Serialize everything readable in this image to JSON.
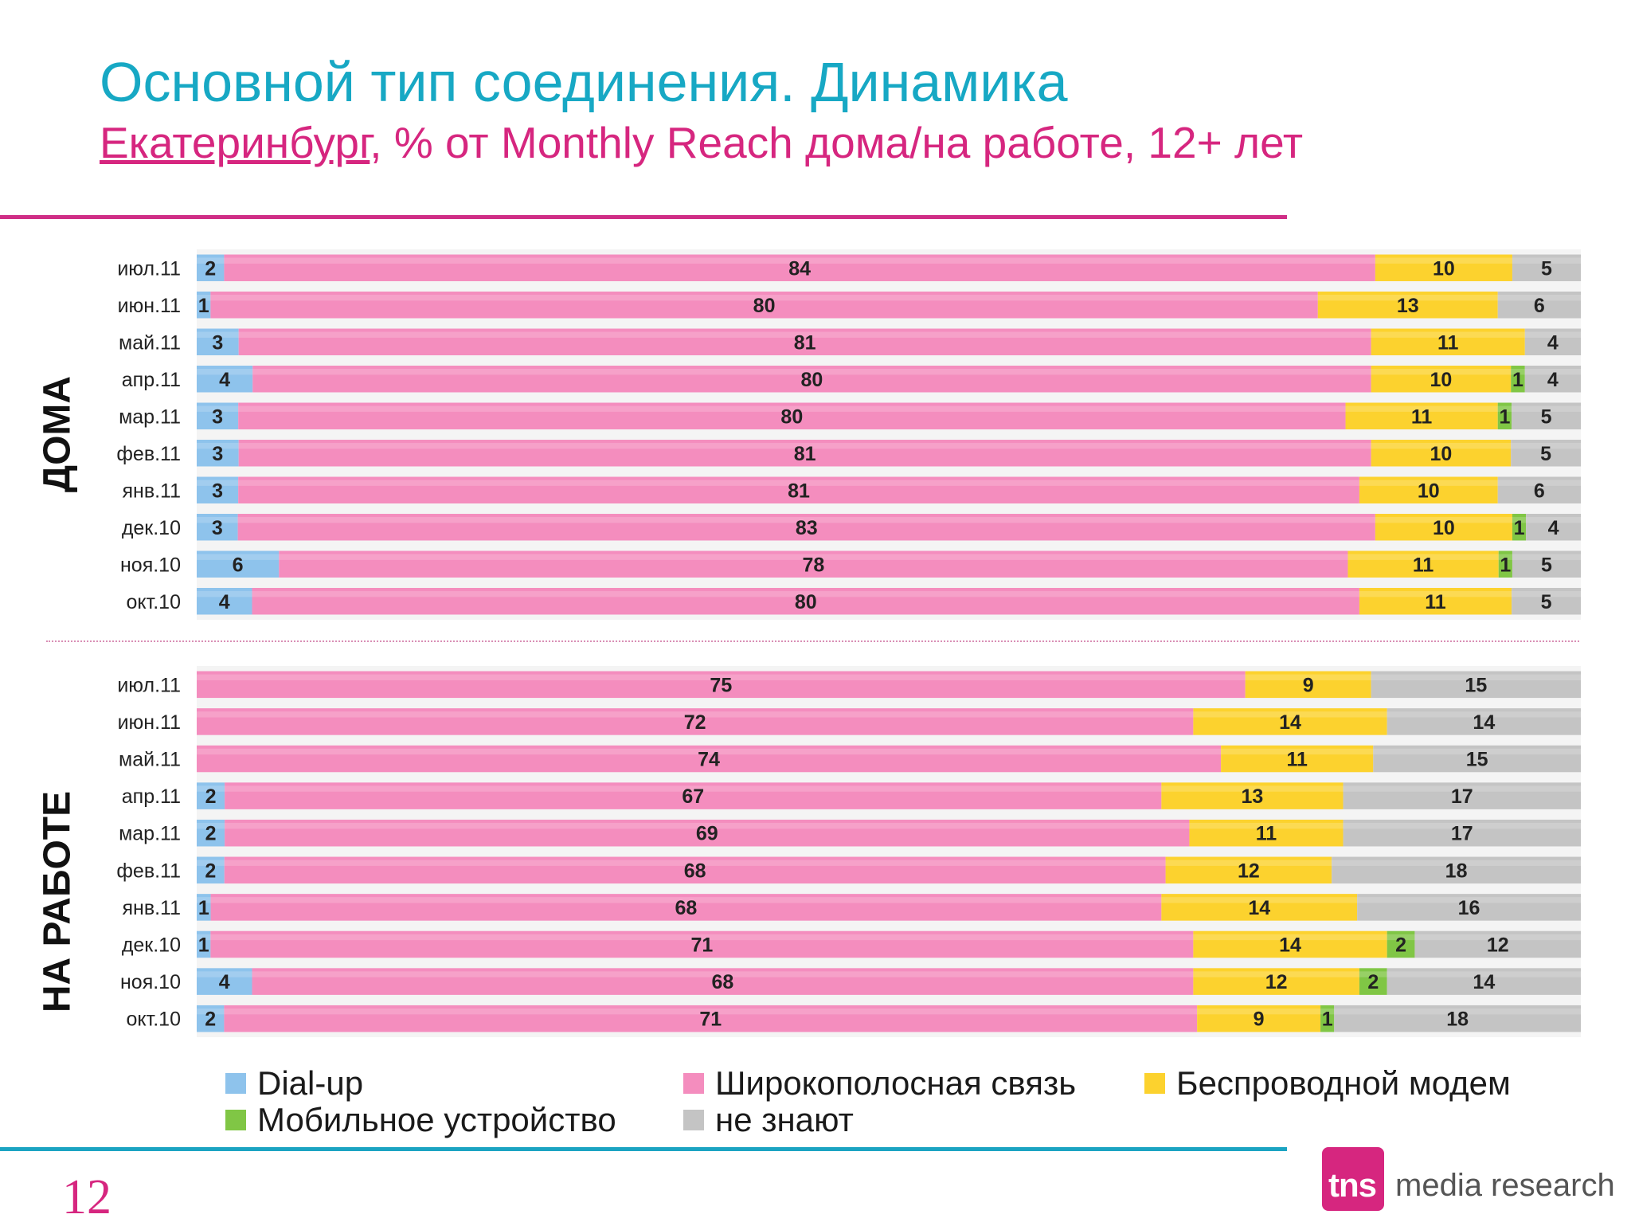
{
  "header": {
    "title": "Основной тип соединения. Динамика",
    "subtitle_city": "Екатеринбург",
    "subtitle_rest": ", % от Monthly Reach дома/на работе, 12+ лет"
  },
  "page_number": "12",
  "logo": {
    "mark": "tns",
    "text": "media research"
  },
  "chart_data": [
    {
      "type": "bar",
      "orientation": "horizontal",
      "stacked": true,
      "panel_label": "ДОМА",
      "categories": [
        "июл.11",
        "июн.11",
        "май.11",
        "апр.11",
        "мар.11",
        "фев.11",
        "янв.11",
        "дек.10",
        "ноя.10",
        "окт.10"
      ],
      "series": [
        {
          "name": "Dial-up",
          "color": "#8ec3ec",
          "values": [
            2,
            1,
            3,
            4,
            3,
            3,
            3,
            3,
            6,
            4
          ]
        },
        {
          "name": "Широкополосная связь",
          "color": "#f48dbe",
          "values": [
            84,
            80,
            81,
            80,
            80,
            81,
            81,
            83,
            78,
            80
          ]
        },
        {
          "name": "Беспроводной модем",
          "color": "#fcd22e",
          "values": [
            10,
            13,
            11,
            10,
            11,
            10,
            10,
            10,
            11,
            11
          ]
        },
        {
          "name": "Мобильное устройство",
          "color": "#80c645",
          "values": [
            0,
            0,
            0,
            1,
            1,
            0,
            0,
            1,
            1,
            0
          ]
        },
        {
          "name": "не знают",
          "color": "#c4c4c4",
          "values": [
            5,
            6,
            4,
            4,
            5,
            5,
            6,
            4,
            5,
            5
          ]
        }
      ]
    },
    {
      "type": "bar",
      "orientation": "horizontal",
      "stacked": true,
      "panel_label": "НА РАБОТЕ",
      "categories": [
        "июл.11",
        "июн.11",
        "май.11",
        "апр.11",
        "мар.11",
        "фев.11",
        "янв.11",
        "дек.10",
        "ноя.10",
        "окт.10"
      ],
      "series": [
        {
          "name": "Dial-up",
          "color": "#8ec3ec",
          "values": [
            0,
            0,
            0,
            2,
            2,
            2,
            1,
            1,
            4,
            2
          ]
        },
        {
          "name": "Широкополосная связь",
          "color": "#f48dbe",
          "values": [
            75,
            72,
            74,
            67,
            69,
            68,
            68,
            71,
            68,
            71
          ]
        },
        {
          "name": "Беспроводной модем",
          "color": "#fcd22e",
          "values": [
            9,
            14,
            11,
            13,
            11,
            12,
            14,
            14,
            12,
            9
          ]
        },
        {
          "name": "Мобильное устройство",
          "color": "#80c645",
          "values": [
            0,
            0,
            0,
            0,
            0,
            0,
            0,
            2,
            2,
            1
          ]
        },
        {
          "name": "не знают",
          "color": "#c4c4c4",
          "values": [
            15,
            14,
            15,
            17,
            17,
            18,
            16,
            12,
            14,
            18
          ]
        }
      ]
    }
  ],
  "legend": [
    {
      "label": "Dial-up",
      "color": "#8ec3ec"
    },
    {
      "label": "Широкополосная связь",
      "color": "#f48dbe"
    },
    {
      "label": "Беспроводной модем",
      "color": "#fcd22e"
    },
    {
      "label": "Мобильное устройство",
      "color": "#80c645"
    },
    {
      "label": "не знают",
      "color": "#c4c4c4"
    }
  ]
}
